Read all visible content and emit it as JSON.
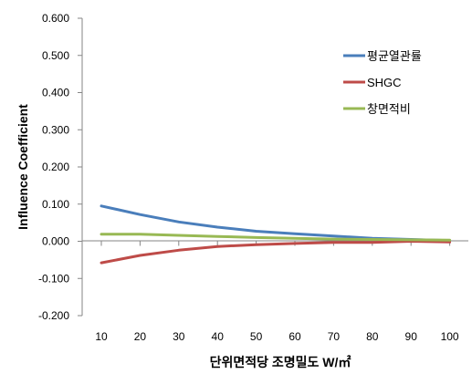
{
  "chart_data": {
    "type": "line",
    "title": "",
    "xlabel": "단위면적당 조명밀도 W/㎡",
    "ylabel": "Influence Coefficient",
    "x": [
      10,
      20,
      30,
      40,
      50,
      60,
      70,
      80,
      90,
      100
    ],
    "x_tick_labels": [
      "10",
      "20",
      "30",
      "40",
      "50",
      "60",
      "70",
      "80",
      "90",
      "100"
    ],
    "y_tick_labels": [
      "0.600",
      "0.500",
      "0.400",
      "0.300",
      "0.200",
      "0.100",
      "0.000",
      "-0.100",
      "-0.200"
    ],
    "ylim": [
      -0.2,
      0.6
    ],
    "grid": false,
    "legend_position": "right",
    "series": [
      {
        "name": "평균열관률",
        "color": "#4a7ebb",
        "values": [
          0.095,
          0.072,
          0.052,
          0.038,
          0.027,
          0.02,
          0.014,
          0.008,
          0.005,
          0.002
        ]
      },
      {
        "name": "SHGC",
        "color": "#be4b48",
        "values": [
          -0.058,
          -0.038,
          -0.024,
          -0.014,
          -0.009,
          -0.006,
          -0.003,
          -0.003,
          0.0,
          -0.002
        ]
      },
      {
        "name": "창면적비",
        "color": "#98b954",
        "values": [
          0.019,
          0.019,
          0.016,
          0.013,
          0.01,
          0.008,
          0.006,
          0.005,
          0.004,
          0.003
        ]
      }
    ]
  }
}
